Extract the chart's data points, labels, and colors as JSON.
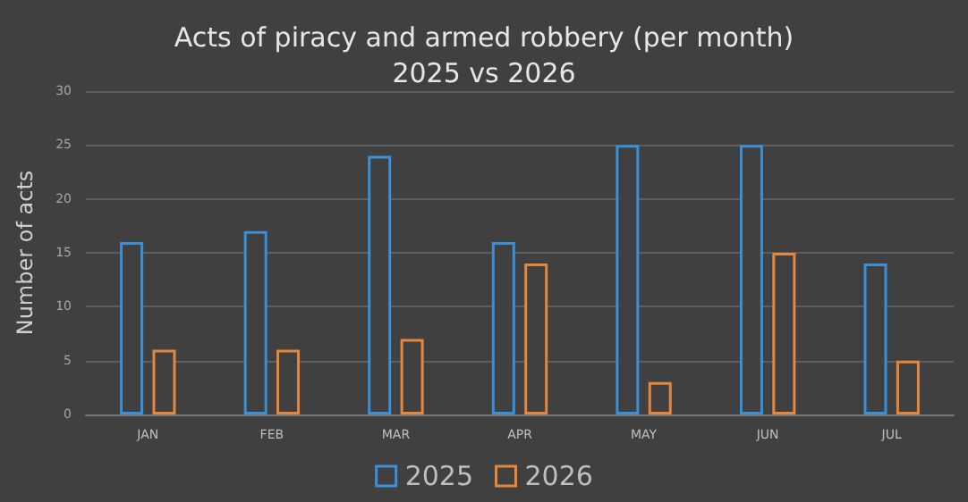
{
  "chart_data": {
    "type": "bar",
    "title": "Acts of piracy and armed robbery (per month)\n2025 vs 2026",
    "ylabel": "Number of acts",
    "categories": [
      "JAN",
      "FEB",
      "MAR",
      "APR",
      "MAY",
      "JUN",
      "JUL"
    ],
    "series": [
      {
        "name": "2025",
        "color": "#3b8fd6",
        "values": [
          16,
          17,
          24,
          16,
          25,
          25,
          14
        ]
      },
      {
        "name": "2026",
        "color": "#e4873c",
        "values": [
          6,
          6,
          7,
          14,
          3,
          15,
          5
        ]
      }
    ],
    "ylim": [
      0,
      30
    ],
    "yticks": [
      0,
      5,
      10,
      15,
      20,
      25,
      30
    ],
    "grid": "y",
    "legend": "bottom"
  }
}
